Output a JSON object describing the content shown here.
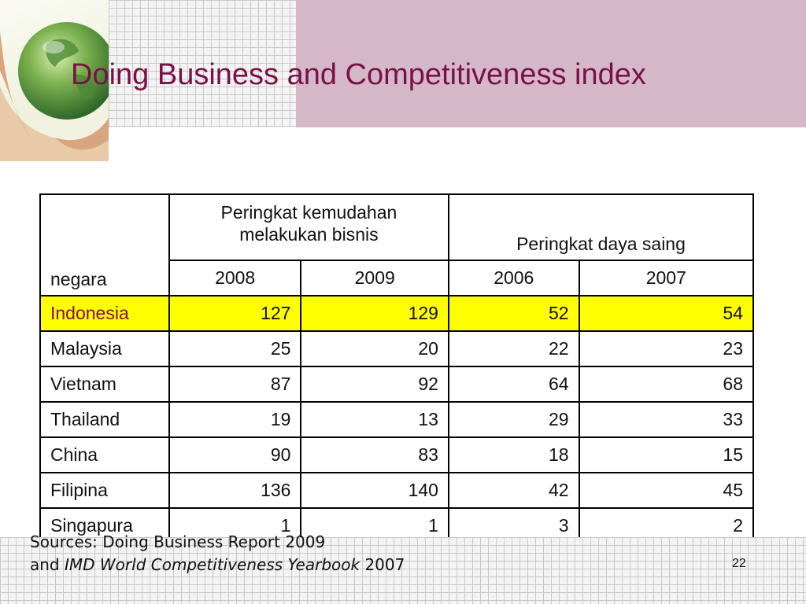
{
  "slide": {
    "title": "Doing Business and Competitiveness index",
    "page_number": "22"
  },
  "table": {
    "country_header": "negara",
    "group_headers": {
      "ease_of_business": "Peringkat kemudahan melakukan bisnis",
      "competitiveness": "Peringkat daya saing"
    },
    "years": [
      "2008",
      "2009",
      "2006",
      "2007"
    ],
    "rows": [
      {
        "country": "Indonesia",
        "values": [
          "127",
          "129",
          "52",
          "54"
        ]
      },
      {
        "country": "Malaysia",
        "values": [
          "25",
          "20",
          "22",
          "23"
        ]
      },
      {
        "country": "Vietnam",
        "values": [
          "87",
          "92",
          "64",
          "68"
        ]
      },
      {
        "country": "Thailand",
        "values": [
          "19",
          "13",
          "29",
          "33"
        ]
      },
      {
        "country": "China",
        "values": [
          "90",
          "83",
          "18",
          "15"
        ]
      },
      {
        "country": "Filipina",
        "values": [
          "136",
          "140",
          "42",
          "45"
        ]
      },
      {
        "country": "Singapura",
        "values": [
          "1",
          "1",
          "3",
          "2"
        ]
      }
    ],
    "highlight_color": "#ffff00"
  },
  "sources": {
    "line1": "Sources: Doing Business Report  2009",
    "line2_prefix": "and ",
    "line2_italic": "IMD World Competitiveness Yearbook",
    "line2_suffix": " 2007"
  },
  "colors": {
    "title": "#7a1048",
    "header_band": "#d4b8c8"
  }
}
